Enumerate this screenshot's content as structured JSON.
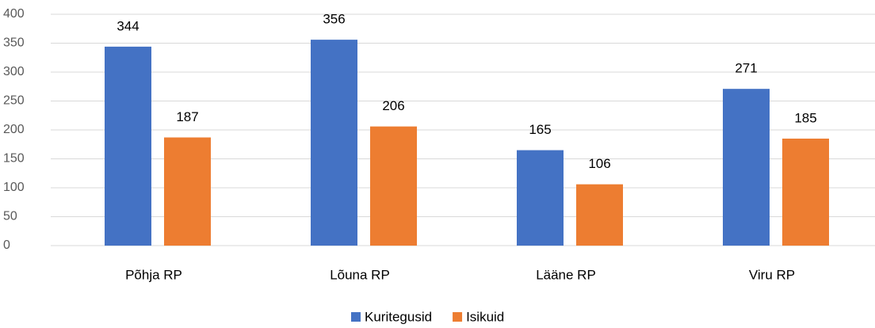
{
  "chart_data": {
    "type": "bar",
    "categories": [
      "Põhja RP",
      "Lõuna RP",
      "Lääne RP",
      "Viru RP"
    ],
    "series": [
      {
        "name": "Kuritegusid",
        "color": "#4472c4",
        "values": [
          344,
          356,
          165,
          271
        ]
      },
      {
        "name": "Isikuid",
        "color": "#ed7d31",
        "values": [
          187,
          206,
          106,
          185
        ]
      }
    ],
    "ylim": [
      0,
      400
    ],
    "yticks": [
      0,
      50,
      100,
      150,
      200,
      250,
      300,
      350,
      400
    ],
    "grid": true,
    "legend": "bottom"
  }
}
